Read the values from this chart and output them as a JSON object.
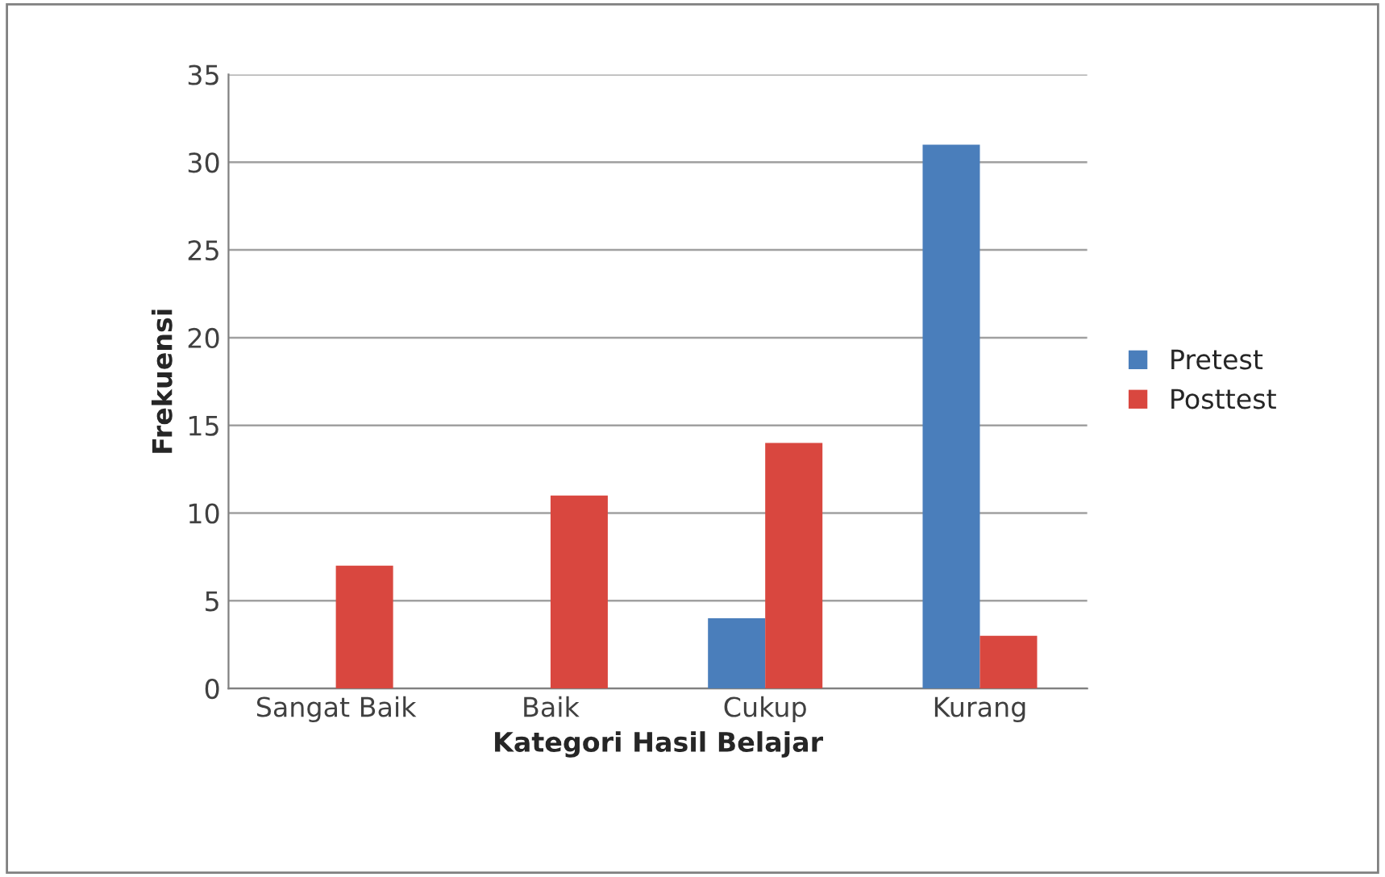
{
  "chart_data": {
    "type": "bar",
    "xlabel": "Kategori Hasil Belajar",
    "ylabel": "Frekuensi",
    "categories": [
      "Sangat Baik",
      "Baik",
      "Cukup",
      "Kurang"
    ],
    "series": [
      {
        "name": "Pretest",
        "color": "#4a7ebb",
        "values": [
          0,
          0,
          4,
          31
        ]
      },
      {
        "name": "Posttest",
        "color": "#d9473f",
        "values": [
          7,
          11,
          14,
          3
        ]
      }
    ],
    "ylim": [
      0,
      35
    ],
    "yticks": [
      0,
      5,
      10,
      15,
      20,
      25,
      30,
      35
    ],
    "grid": "y",
    "legend": "right"
  }
}
